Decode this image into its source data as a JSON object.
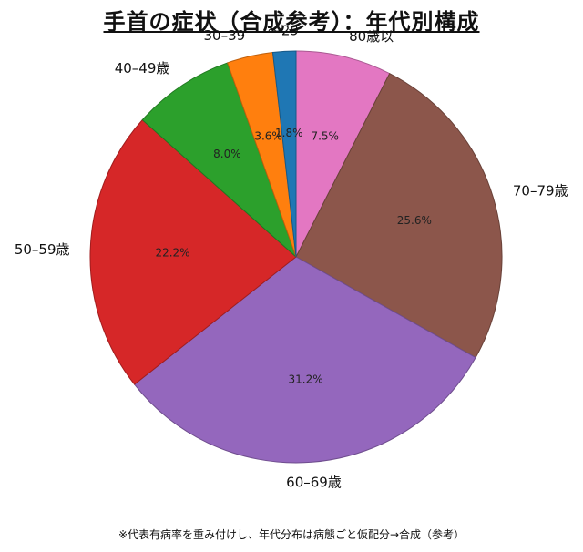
{
  "chart_data": {
    "type": "pie",
    "title": "手首の症状（合成参考）：年代別構成",
    "footnote": "※代表有病率を重み付けし、年代分布は病態ごと仮配分→合成（参考）",
    "start_angle_deg": 90,
    "direction": "clockwise",
    "slices": [
      {
        "label": "80歳以",
        "value": 7.5,
        "pct_text": "7.5%",
        "color": "#e377c2"
      },
      {
        "label": "70–79歳",
        "value": 25.6,
        "pct_text": "25.6%",
        "color": "#8c564b"
      },
      {
        "label": "60–69歳",
        "value": 31.2,
        "pct_text": "31.2%",
        "color": "#9467bd"
      },
      {
        "label": "50–59歳",
        "value": 22.2,
        "pct_text": "22.2%",
        "color": "#d62728"
      },
      {
        "label": "40–49歳",
        "value": 8.0,
        "pct_text": "8.0%",
        "color": "#2ca02c"
      },
      {
        "label": "30–39",
        "value": 3.6,
        "pct_text": "3.6%",
        "color": "#ff7f0e"
      },
      {
        "label": "〜29",
        "value": 1.8,
        "pct_text": "1.8%",
        "color": "#1f77b4"
      }
    ]
  }
}
